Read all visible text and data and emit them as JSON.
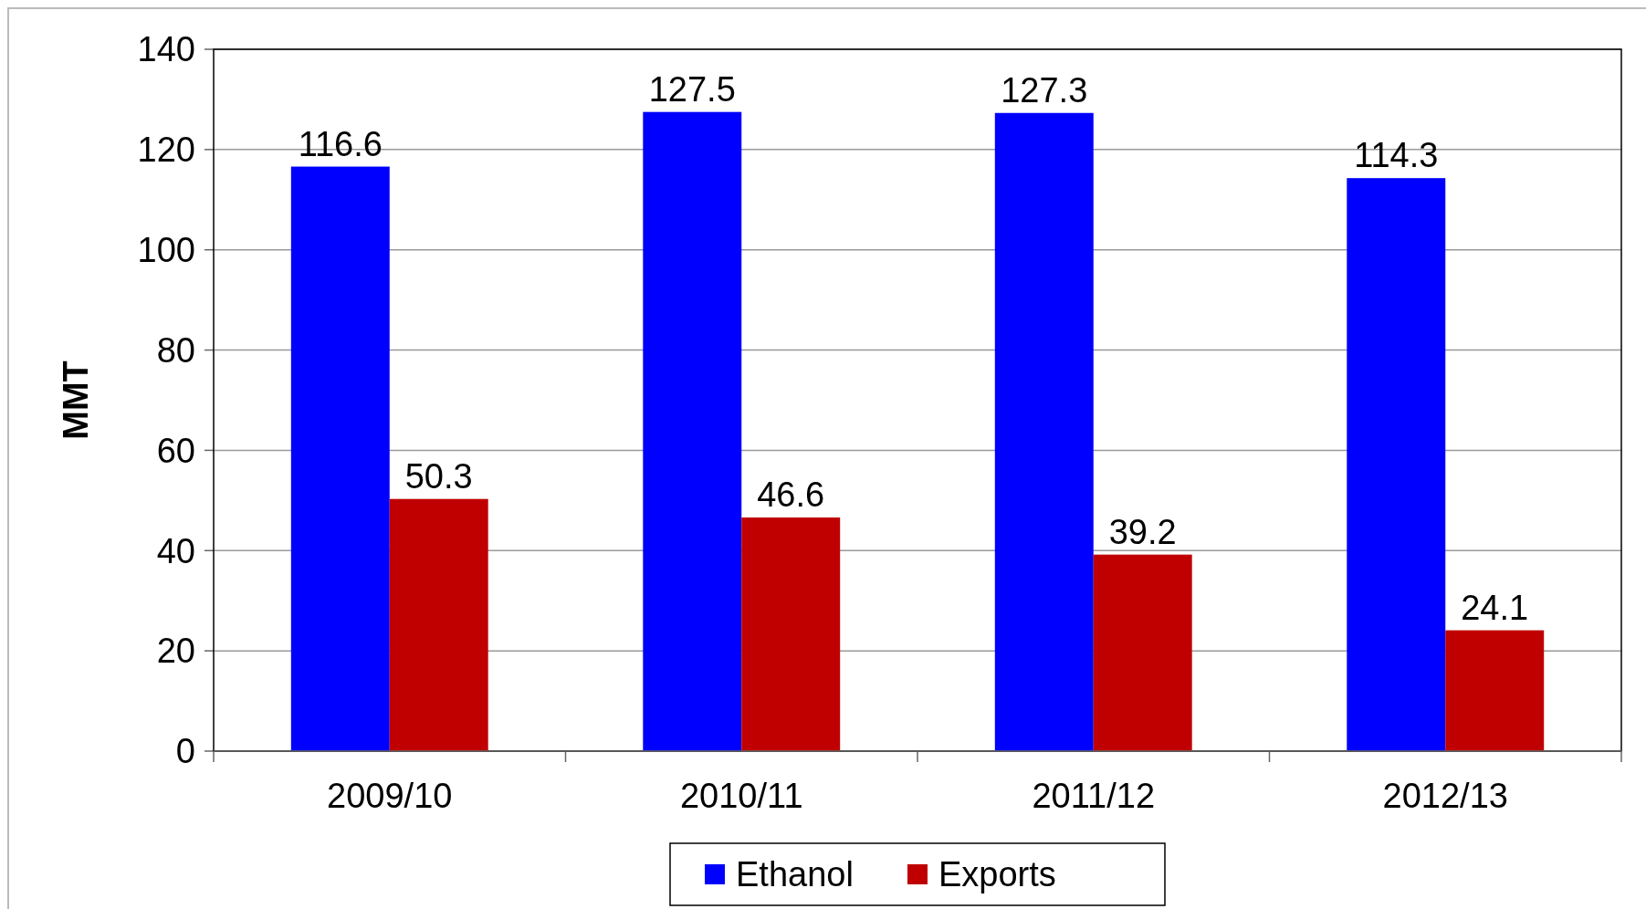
{
  "chart_data": {
    "type": "bar",
    "ylabel": "MMT",
    "categories": [
      "2009/10",
      "2010/11",
      "2011/12",
      "2012/13"
    ],
    "series": [
      {
        "name": "Ethanol",
        "color": "#0000ff",
        "values": [
          116.6,
          127.5,
          127.3,
          114.3
        ]
      },
      {
        "name": "Exports",
        "color": "#c00000",
        "values": [
          50.3,
          46.6,
          39.2,
          24.1
        ]
      }
    ],
    "ylim": [
      0,
      140
    ],
    "yticks": [
      0,
      20,
      40,
      60,
      80,
      100,
      120,
      140
    ],
    "grid": "y",
    "legend": "bottom",
    "data_labels": true
  }
}
